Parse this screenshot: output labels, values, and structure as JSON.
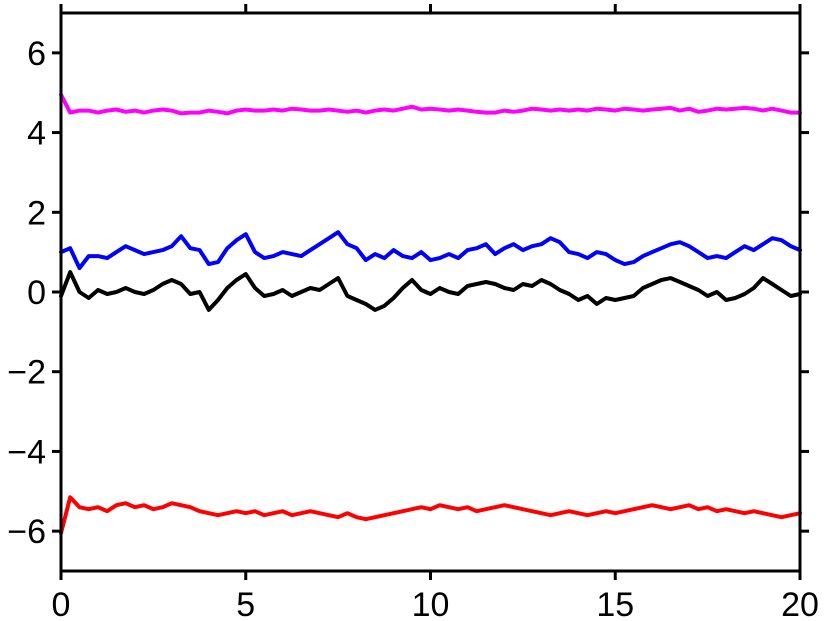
{
  "chart_data": {
    "type": "line",
    "title": "",
    "xlabel": "",
    "ylabel": "",
    "xlim": [
      0,
      20
    ],
    "ylim": [
      -7,
      7
    ],
    "grid": false,
    "legend": "none",
    "x_ticks": [
      0,
      5,
      10,
      15,
      20
    ],
    "x_tick_labels": [
      "0",
      "5",
      "10",
      "15",
      "20"
    ],
    "y_ticks": [
      -6,
      -4,
      -2,
      0,
      2,
      4,
      6
    ],
    "y_tick_labels": [
      "−6",
      "−4",
      "−2",
      "0",
      "2",
      "4",
      "6"
    ],
    "x": [
      0,
      0.25,
      0.5,
      0.75,
      1,
      1.25,
      1.5,
      1.75,
      2,
      2.25,
      2.5,
      2.75,
      3,
      3.25,
      3.5,
      3.75,
      4,
      4.25,
      4.5,
      4.75,
      5,
      5.25,
      5.5,
      5.75,
      6,
      6.25,
      6.5,
      6.75,
      7,
      7.25,
      7.5,
      7.75,
      8,
      8.25,
      8.5,
      8.75,
      9,
      9.25,
      9.5,
      9.75,
      10,
      10.25,
      10.5,
      10.75,
      11,
      11.25,
      11.5,
      11.75,
      12,
      12.25,
      12.5,
      12.75,
      13,
      13.25,
      13.5,
      13.75,
      14,
      14.25,
      14.5,
      14.75,
      15,
      15.25,
      15.5,
      15.75,
      16,
      16.25,
      16.5,
      16.75,
      17,
      17.25,
      17.5,
      17.75,
      18,
      18.25,
      18.5,
      18.75,
      19,
      19.25,
      19.5,
      19.75,
      20
    ],
    "series": [
      {
        "color": "#ff00ff",
        "values": [
          4.95,
          4.5,
          4.55,
          4.55,
          4.5,
          4.55,
          4.58,
          4.52,
          4.55,
          4.5,
          4.55,
          4.58,
          4.55,
          4.48,
          4.5,
          4.5,
          4.55,
          4.52,
          4.48,
          4.55,
          4.58,
          4.55,
          4.55,
          4.58,
          4.55,
          4.6,
          4.58,
          4.55,
          4.55,
          4.58,
          4.55,
          4.52,
          4.55,
          4.5,
          4.55,
          4.58,
          4.55,
          4.6,
          4.65,
          4.58,
          4.6,
          4.58,
          4.55,
          4.58,
          4.55,
          4.52,
          4.5,
          4.5,
          4.55,
          4.52,
          4.55,
          4.6,
          4.58,
          4.55,
          4.58,
          4.55,
          4.58,
          4.55,
          4.6,
          4.58,
          4.55,
          4.6,
          4.58,
          4.55,
          4.58,
          4.6,
          4.62,
          4.55,
          4.6,
          4.52,
          4.55,
          4.6,
          4.58,
          4.6,
          4.62,
          4.6,
          4.55,
          4.6,
          4.55,
          4.5,
          4.5
        ]
      },
      {
        "color": "#0000ff",
        "values": [
          1.0,
          1.1,
          0.6,
          0.9,
          0.9,
          0.85,
          1.0,
          1.15,
          1.05,
          0.95,
          1.0,
          1.05,
          1.15,
          1.4,
          1.1,
          1.05,
          0.7,
          0.75,
          1.1,
          1.3,
          1.45,
          1.0,
          0.85,
          0.9,
          1.0,
          0.95,
          0.9,
          1.05,
          1.2,
          1.35,
          1.5,
          1.2,
          1.1,
          0.8,
          0.95,
          0.85,
          1.05,
          0.9,
          0.85,
          1.0,
          0.8,
          0.85,
          0.95,
          0.85,
          1.05,
          1.1,
          1.2,
          0.95,
          1.1,
          1.2,
          1.05,
          1.15,
          1.2,
          1.35,
          1.25,
          1.0,
          0.95,
          0.85,
          1.0,
          0.95,
          0.8,
          0.7,
          0.75,
          0.9,
          1.0,
          1.1,
          1.2,
          1.25,
          1.15,
          1.0,
          0.85,
          0.9,
          0.85,
          1.0,
          1.15,
          1.05,
          1.2,
          1.35,
          1.3,
          1.15,
          1.05
        ]
      },
      {
        "color": "#000000",
        "values": [
          -0.1,
          0.5,
          0.0,
          -0.15,
          0.05,
          -0.05,
          0.0,
          0.1,
          0.0,
          -0.05,
          0.05,
          0.2,
          0.3,
          0.2,
          -0.05,
          0.0,
          -0.45,
          -0.2,
          0.1,
          0.3,
          0.45,
          0.1,
          -0.1,
          -0.05,
          0.05,
          -0.1,
          0.0,
          0.1,
          0.05,
          0.2,
          0.35,
          -0.1,
          -0.2,
          -0.3,
          -0.45,
          -0.35,
          -0.15,
          0.1,
          0.3,
          0.05,
          -0.05,
          0.1,
          0.0,
          -0.05,
          0.15,
          0.2,
          0.25,
          0.2,
          0.1,
          0.05,
          0.2,
          0.15,
          0.3,
          0.2,
          0.05,
          -0.05,
          -0.2,
          -0.1,
          -0.3,
          -0.15,
          -0.2,
          -0.15,
          -0.1,
          0.1,
          0.2,
          0.3,
          0.35,
          0.25,
          0.15,
          0.05,
          -0.1,
          0.0,
          -0.2,
          -0.15,
          -0.05,
          0.1,
          0.35,
          0.2,
          0.05,
          -0.1,
          -0.05
        ]
      },
      {
        "color": "#ff0000",
        "values": [
          -6.05,
          -5.15,
          -5.4,
          -5.45,
          -5.4,
          -5.5,
          -5.35,
          -5.3,
          -5.4,
          -5.35,
          -5.45,
          -5.4,
          -5.3,
          -5.35,
          -5.4,
          -5.5,
          -5.55,
          -5.6,
          -5.55,
          -5.5,
          -5.55,
          -5.5,
          -5.6,
          -5.55,
          -5.5,
          -5.6,
          -5.55,
          -5.5,
          -5.55,
          -5.6,
          -5.65,
          -5.55,
          -5.65,
          -5.7,
          -5.65,
          -5.6,
          -5.55,
          -5.5,
          -5.45,
          -5.4,
          -5.45,
          -5.35,
          -5.4,
          -5.45,
          -5.4,
          -5.5,
          -5.45,
          -5.4,
          -5.35,
          -5.4,
          -5.45,
          -5.5,
          -5.55,
          -5.6,
          -5.55,
          -5.5,
          -5.55,
          -5.6,
          -5.55,
          -5.5,
          -5.55,
          -5.5,
          -5.45,
          -5.4,
          -5.35,
          -5.4,
          -5.45,
          -5.4,
          -5.35,
          -5.45,
          -5.4,
          -5.5,
          -5.45,
          -5.5,
          -5.55,
          -5.5,
          -5.55,
          -5.6,
          -5.65,
          -5.6,
          -5.55
        ]
      }
    ]
  }
}
